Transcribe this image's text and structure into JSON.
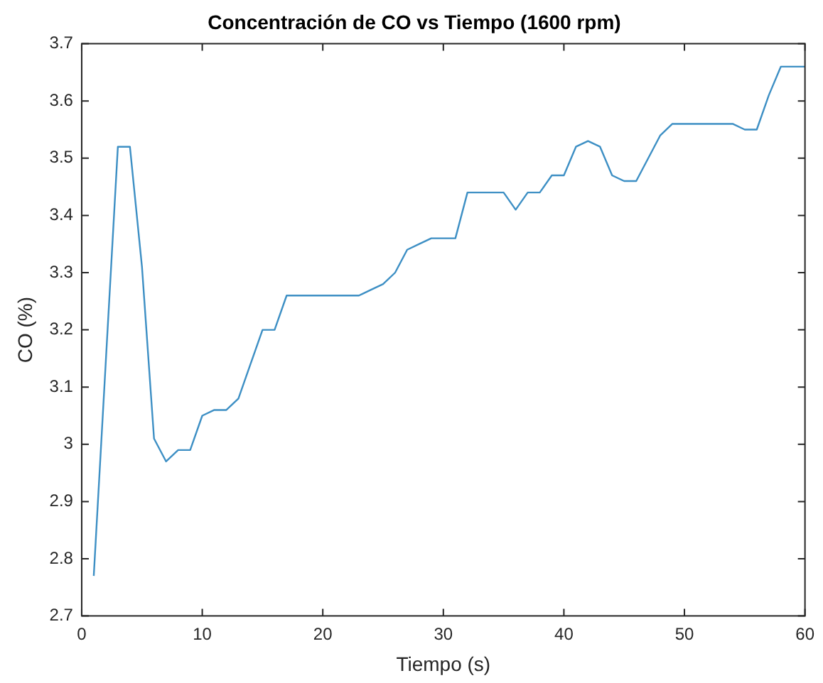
{
  "chart_data": {
    "type": "line",
    "title": "Concentración de CO vs Tiempo (1600 rpm)",
    "xlabel": "Tiempo (s)",
    "ylabel": "CO (%)",
    "x": [
      1,
      3,
      4,
      5,
      6,
      7,
      8,
      9,
      10,
      11,
      12,
      13,
      14,
      15,
      16,
      17,
      23,
      24,
      25,
      26,
      27,
      28,
      29,
      31,
      32,
      35,
      36,
      37,
      38,
      39,
      40,
      41,
      42,
      43,
      44,
      45,
      46,
      47,
      48,
      49,
      54,
      55,
      56,
      57,
      58,
      60
    ],
    "series": [
      {
        "color": "#3d8fc4",
        "values": [
          2.77,
          3.52,
          3.52,
          3.31,
          3.01,
          2.97,
          2.99,
          2.99,
          3.05,
          3.06,
          3.06,
          3.08,
          3.14,
          3.2,
          3.2,
          3.26,
          3.26,
          3.27,
          3.28,
          3.3,
          3.34,
          3.35,
          3.36,
          3.36,
          3.44,
          3.44,
          3.41,
          3.44,
          3.44,
          3.47,
          3.47,
          3.52,
          3.53,
          3.52,
          3.47,
          3.46,
          3.46,
          3.5,
          3.54,
          3.56,
          3.56,
          3.55,
          3.55,
          3.61,
          3.66,
          3.66
        ]
      }
    ],
    "xlim": [
      0,
      60
    ],
    "xticks": [
      0,
      10,
      20,
      30,
      40,
      50,
      60
    ],
    "ylim": [
      2.7,
      3.7
    ],
    "yticks": [
      2.7,
      2.8,
      2.9,
      3,
      3.1,
      3.2,
      3.3,
      3.4,
      3.5,
      3.6,
      3.7
    ],
    "grid": false,
    "legend": false,
    "marker": "none",
    "line_style": "solid"
  }
}
